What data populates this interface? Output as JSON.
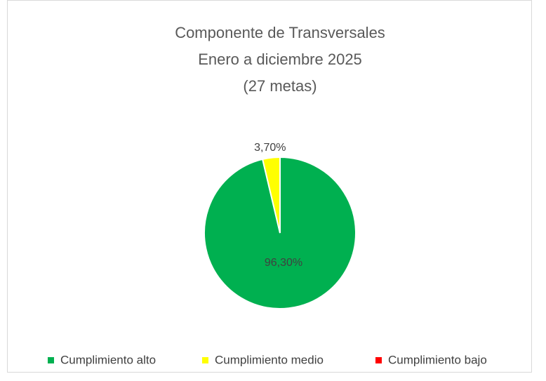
{
  "chart_data": {
    "type": "pie",
    "title": [
      "Componente de Transversales",
      "Enero a diciembre 2025",
      "(27 metas)"
    ],
    "categories": [
      "Cumplimiento alto",
      "Cumplimiento medio",
      "Cumplimiento bajo"
    ],
    "values": [
      96.3,
      3.7,
      0
    ],
    "value_labels": [
      "96,30%",
      "3,70%",
      null
    ],
    "colors": [
      "#00b050",
      "#ffff00",
      "#ff0000"
    ],
    "legend": "bottom"
  }
}
